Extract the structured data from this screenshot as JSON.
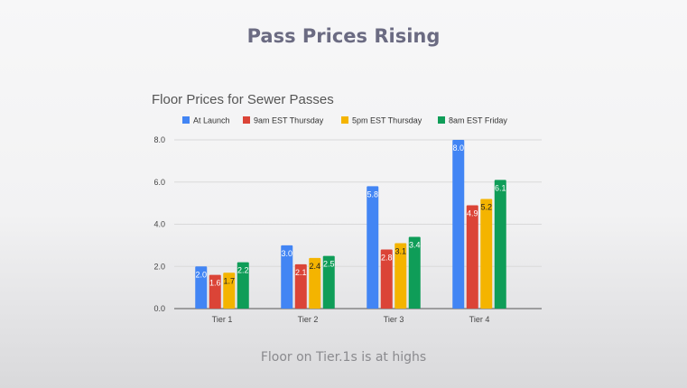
{
  "slide": {
    "title": "Pass Prices Rising",
    "footer": "Floor on Tier.1s is at highs"
  },
  "chart_data": {
    "type": "bar",
    "title": "Floor Prices for Sewer Passes",
    "categories": [
      "Tier 1",
      "Tier 2",
      "Tier 3",
      "Tier 4"
    ],
    "series": [
      {
        "name": "At Launch",
        "color": "#4285f4",
        "label_color": "#ffffff",
        "values": [
          2.0,
          3.0,
          5.8,
          8.0
        ]
      },
      {
        "name": "9am EST Thursday",
        "color": "#db4437",
        "label_color": "#ffffff",
        "values": [
          1.6,
          2.1,
          2.8,
          4.9
        ]
      },
      {
        "name": "5pm EST Thursday",
        "color": "#f4b400",
        "label_color": "#222222",
        "values": [
          1.7,
          2.4,
          3.1,
          5.2
        ]
      },
      {
        "name": "8am EST Friday",
        "color": "#0f9d58",
        "label_color": "#ffffff",
        "values": [
          2.2,
          2.5,
          3.4,
          6.1
        ]
      }
    ],
    "yticks": [
      "0.0",
      "2.0",
      "4.0",
      "6.0",
      "8.0"
    ],
    "ylim": [
      0,
      8
    ],
    "xlabel": "",
    "ylabel": "",
    "legend": "top",
    "grid": true
  }
}
